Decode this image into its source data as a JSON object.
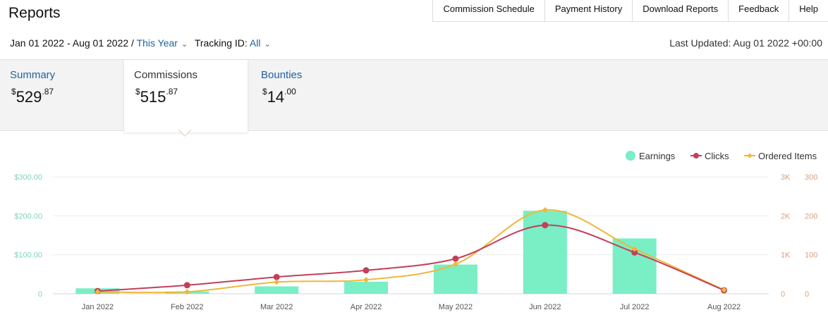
{
  "header": {
    "title": "Reports"
  },
  "topnav": [
    {
      "label": "Commission Schedule"
    },
    {
      "label": "Payment History"
    },
    {
      "label": "Download Reports"
    },
    {
      "label": "Feedback"
    },
    {
      "label": "Help"
    }
  ],
  "filters": {
    "date_range": "Jan 01 2022 - Aug 01 2022 /",
    "period": "This Year",
    "tracking_label": "Tracking ID:",
    "tracking_value": "All",
    "last_updated": "Last Updated: Aug 01 2022 +00:00"
  },
  "tabs": {
    "summary": {
      "label": "Summary",
      "currency": "$",
      "whole": "529",
      "cents": ".87"
    },
    "commissions": {
      "label": "Commissions",
      "currency": "$",
      "whole": "515",
      "cents": ".87"
    },
    "bounties": {
      "label": "Bounties",
      "currency": "$",
      "whole": "14",
      "cents": ".00"
    }
  },
  "legend": {
    "earnings": "Earnings",
    "clicks": "Clicks",
    "ordered": "Ordered Items"
  },
  "colors": {
    "earnings": "#7aeec4",
    "clicks": "#c2405a",
    "ordered": "#f0b73a",
    "link": "#2162a1"
  },
  "chart_data": {
    "type": "bar",
    "categories": [
      "Jan 2022",
      "Feb 2022",
      "Mar 2022",
      "Apr 2022",
      "May 2022",
      "Jun 2022",
      "Jul 2022",
      "Aug 2022"
    ],
    "series": [
      {
        "name": "Earnings",
        "type": "bar",
        "axis": "left",
        "values": [
          14,
          6,
          19,
          31,
          75,
          213,
          142,
          0
        ]
      },
      {
        "name": "Clicks",
        "type": "line",
        "axis": "right1",
        "values": [
          70,
          220,
          430,
          600,
          900,
          1760,
          1060,
          90
        ]
      },
      {
        "name": "Ordered Items",
        "type": "line",
        "axis": "right2",
        "values": [
          5,
          5,
          30,
          36,
          76,
          215,
          115,
          10
        ]
      }
    ],
    "y_left": {
      "ticks": [
        "0",
        "$100.00",
        "$200.00",
        "$300.00"
      ],
      "max": 300
    },
    "y_right1": {
      "ticks": [
        "0",
        "1K",
        "2K",
        "3K"
      ],
      "max": 3000
    },
    "y_right2": {
      "ticks": [
        "0",
        "100",
        "200",
        "300"
      ],
      "max": 300
    },
    "grid": true,
    "legend_position": "top-right"
  }
}
